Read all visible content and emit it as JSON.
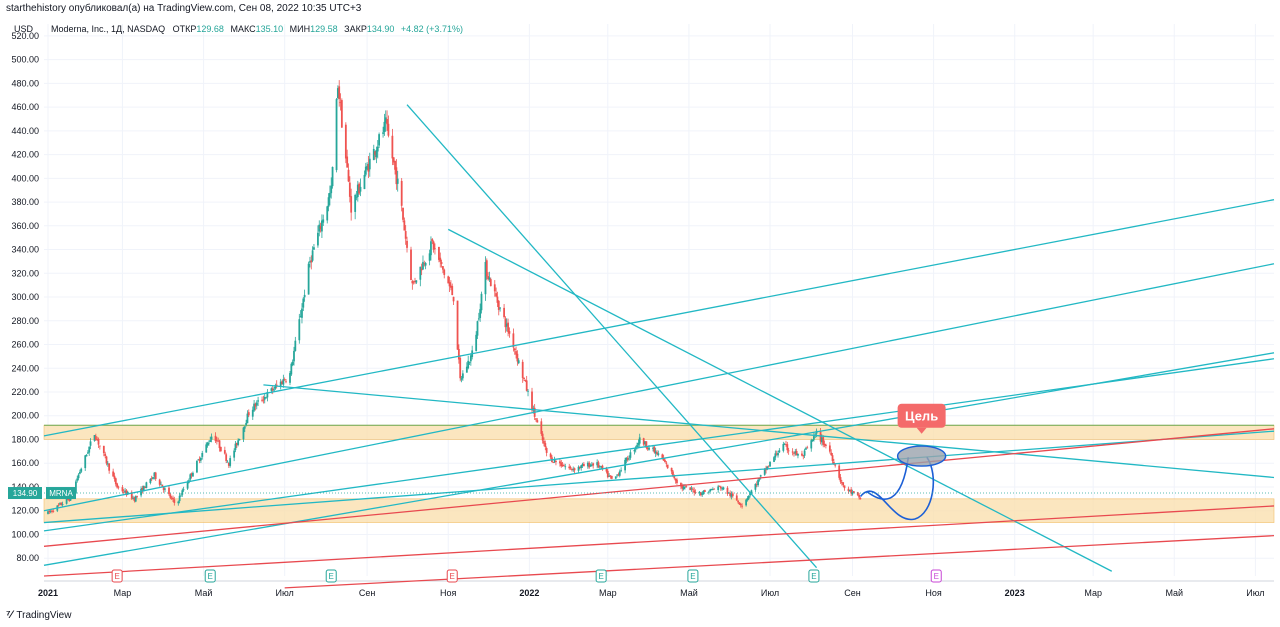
{
  "header": {
    "publish_line": "starthehistory опубликовал(а) на TradingView.com, Сен 08, 2022 10:35 UTC+3"
  },
  "legend": {
    "symbol": "Moderna, Inc., 1Д, NASDAQ",
    "open_label": "ОТКР",
    "open_value": "129.68",
    "high_label": "МАКС",
    "high_value": "135.10",
    "low_label": "МИН",
    "low_value": "129.58",
    "close_label": "ЗАКР",
    "close_value": "134.90",
    "change": "+4.82 (+3.71%)"
  },
  "footer": {
    "brand": "TradingView"
  },
  "colors": {
    "up": "#26a69a",
    "down": "#ef5350",
    "trendline_teal": "#22b8c4",
    "trendline_red": "#e8494f",
    "zone_fill": "#fbe0b0",
    "label_bg": "#f46a6a"
  },
  "chart_data": {
    "type": "candlestick",
    "ticker": "MRNA",
    "currency": "USD",
    "last_price": "134.90",
    "ylim": [
      65,
      530
    ],
    "y_ticks": [
      "520.00",
      "500.00",
      "480.00",
      "460.00",
      "440.00",
      "420.00",
      "400.00",
      "380.00",
      "360.00",
      "340.00",
      "320.00",
      "300.00",
      "280.00",
      "260.00",
      "240.00",
      "220.00",
      "200.00",
      "180.00",
      "160.00",
      "140.00",
      "120.00",
      "100.00",
      "80.00"
    ],
    "x_ticks": [
      "2021",
      "Мар",
      "Май",
      "Июл",
      "Сен",
      "Ноя",
      "2022",
      "Мар",
      "Май",
      "Июл",
      "Сен",
      "Ноя",
      "2023",
      "Мар",
      "Май",
      "Июл"
    ],
    "price_path": [
      [
        "2021-01-04",
        118
      ],
      [
        "2021-01-20",
        130
      ],
      [
        "2021-02-08",
        185
      ],
      [
        "2021-02-25",
        140
      ],
      [
        "2021-03-10",
        130
      ],
      [
        "2021-03-25",
        150
      ],
      [
        "2021-04-10",
        125
      ],
      [
        "2021-04-25",
        158
      ],
      [
        "2021-05-08",
        185
      ],
      [
        "2021-05-20",
        160
      ],
      [
        "2021-06-05",
        205
      ],
      [
        "2021-06-20",
        220
      ],
      [
        "2021-07-05",
        235
      ],
      [
        "2021-07-20",
        330
      ],
      [
        "2021-08-05",
        390
      ],
      [
        "2021-08-10",
        480
      ],
      [
        "2021-08-20",
        375
      ],
      [
        "2021-09-05",
        420
      ],
      [
        "2021-09-15",
        445
      ],
      [
        "2021-09-25",
        390
      ],
      [
        "2021-10-05",
        310
      ],
      [
        "2021-10-20",
        345
      ],
      [
        "2021-11-05",
        300
      ],
      [
        "2021-11-10",
        230
      ],
      [
        "2021-11-20",
        255
      ],
      [
        "2021-11-29",
        325
      ],
      [
        "2021-12-10",
        290
      ],
      [
        "2021-12-20",
        260
      ],
      [
        "2022-01-05",
        200
      ],
      [
        "2022-01-15",
        165
      ],
      [
        "2022-02-01",
        155
      ],
      [
        "2022-02-20",
        160
      ],
      [
        "2022-03-05",
        145
      ],
      [
        "2022-03-25",
        180
      ],
      [
        "2022-04-10",
        165
      ],
      [
        "2022-04-25",
        140
      ],
      [
        "2022-05-10",
        135
      ],
      [
        "2022-05-25",
        140
      ],
      [
        "2022-06-10",
        125
      ],
      [
        "2022-06-25",
        150
      ],
      [
        "2022-07-10",
        175
      ],
      [
        "2022-07-25",
        165
      ],
      [
        "2022-08-05",
        185
      ],
      [
        "2022-08-15",
        170
      ],
      [
        "2022-08-25",
        140
      ],
      [
        "2022-09-07",
        130
      ]
    ],
    "zones": [
      {
        "from": 180,
        "to": 192
      },
      {
        "from": 110,
        "to": 130
      }
    ],
    "target_label": "Цель",
    "earnings_marker": "E"
  }
}
